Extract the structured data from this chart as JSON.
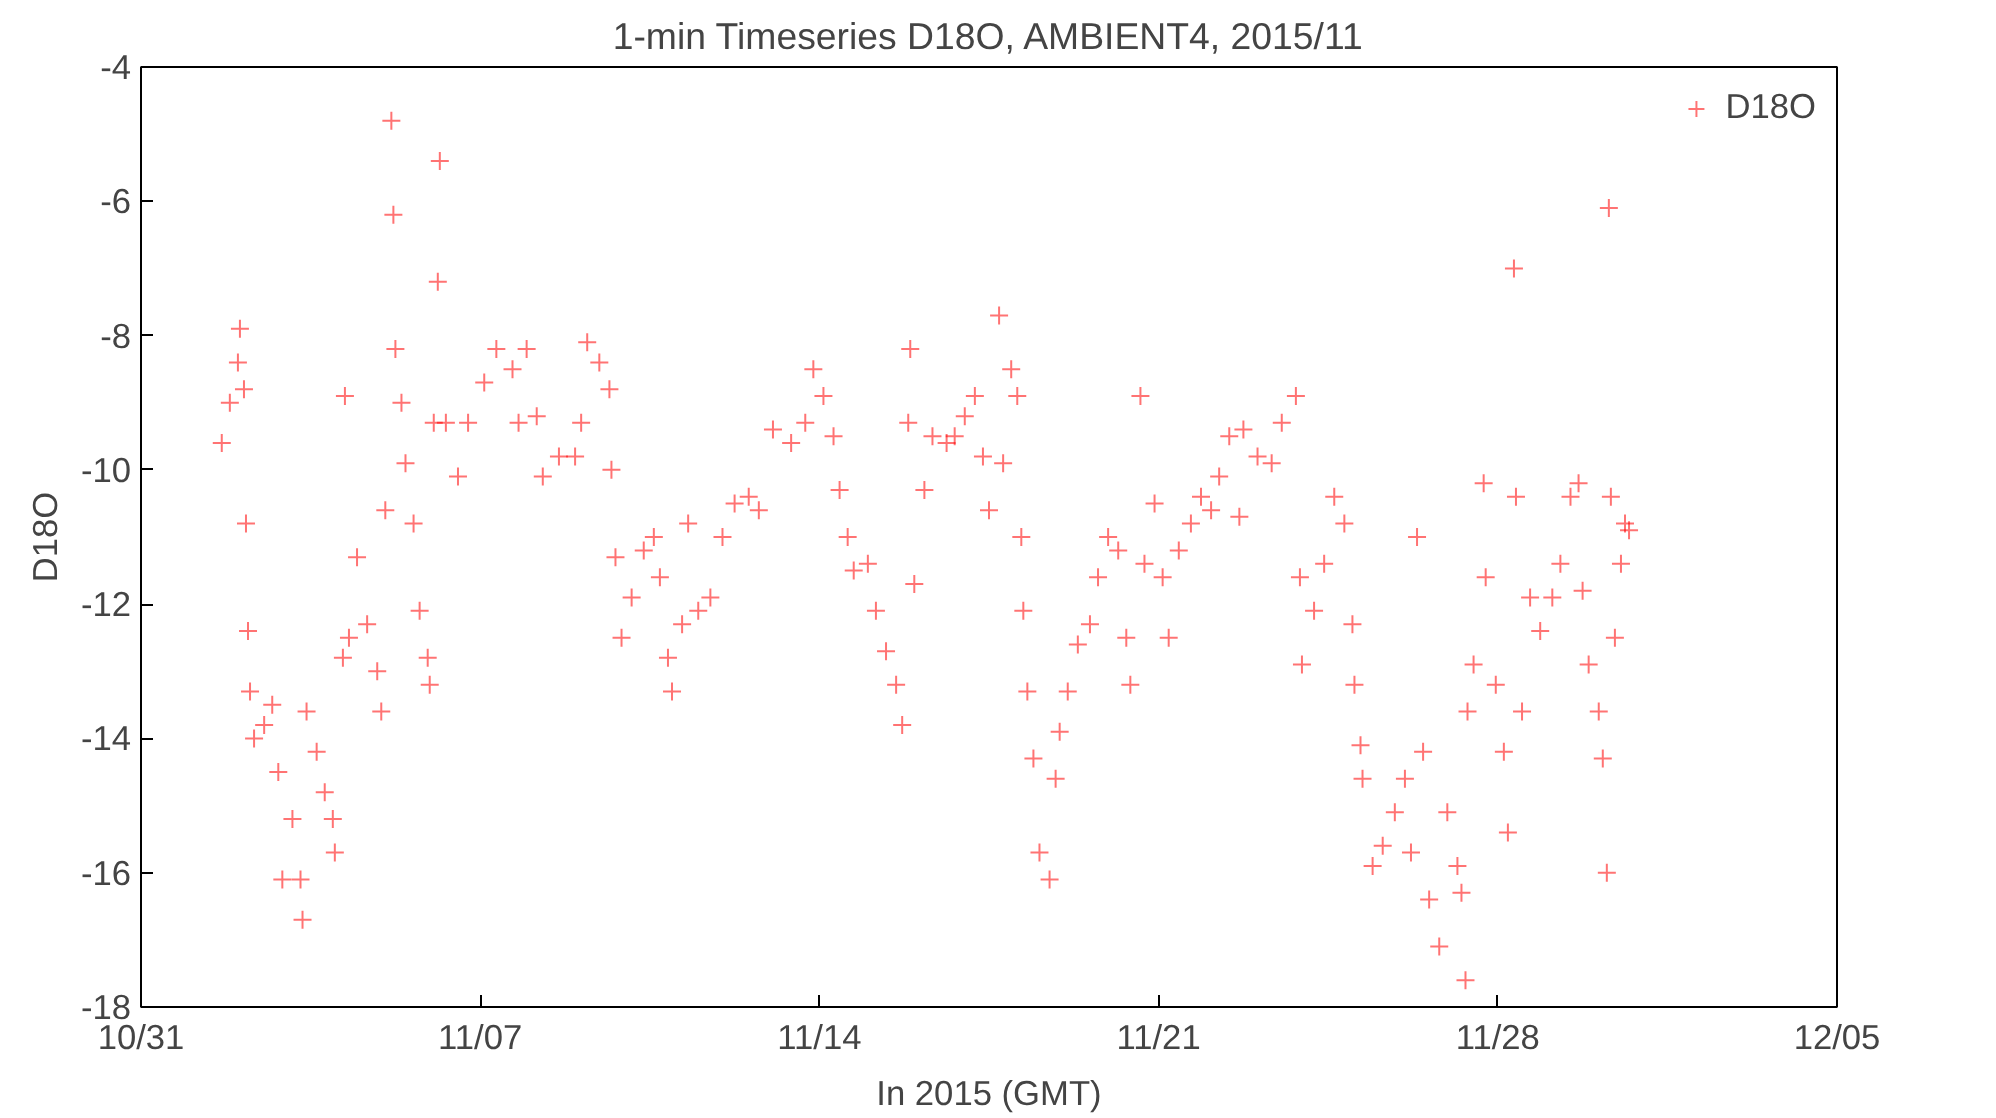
{
  "chart_data": {
    "type": "scatter",
    "title": "1-min Timeseries D18O, AMBIENT4, 2015/11",
    "xlabel": "In 2015 (GMT)",
    "ylabel": "D18O",
    "xlim": [
      "2015-10-31",
      "2015-12-05"
    ],
    "xticks": [
      {
        "value": "2015-10-31",
        "label": "10/31"
      },
      {
        "value": "2015-11-07",
        "label": "11/07"
      },
      {
        "value": "2015-11-14",
        "label": "11/14"
      },
      {
        "value": "2015-11-21",
        "label": "11/21"
      },
      {
        "value": "2015-11-28",
        "label": "11/28"
      },
      {
        "value": "2015-12-05",
        "label": "12/05"
      }
    ],
    "ylim": [
      -18,
      -4
    ],
    "yticks": [
      -18,
      -16,
      -14,
      -12,
      -10,
      -8,
      -6,
      -4
    ],
    "grid": false,
    "legend": "top right",
    "marker": "cross",
    "series": [
      {
        "name": "D18O",
        "color": "#ff0000",
        "x": [
          "2015-11-01T16:00",
          "2015-11-01T20:00",
          "2015-11-02T00:00",
          "2015-11-02T01:00",
          "2015-11-02T03:00",
          "2015-11-02T04:00",
          "2015-11-02T05:00",
          "2015-11-02T06:00",
          "2015-11-02T08:00",
          "2015-11-02T13:00",
          "2015-11-02T17:00",
          "2015-11-02T20:00",
          "2015-11-02T22:00",
          "2015-11-03T03:00",
          "2015-11-03T07:00",
          "2015-11-03T08:00",
          "2015-11-03T10:00",
          "2015-11-03T15:00",
          "2015-11-03T19:00",
          "2015-11-03T23:00",
          "2015-11-04T00:00",
          "2015-11-04T04:00",
          "2015-11-04T05:00",
          "2015-11-04T07:00",
          "2015-11-04T11:00",
          "2015-11-04T16:00",
          "2015-11-04T21:00",
          "2015-11-04T23:00",
          "2015-11-05T01:00",
          "2015-11-05T04:00",
          "2015-11-05T05:00",
          "2015-11-05T06:00",
          "2015-11-05T09:00",
          "2015-11-05T11:00",
          "2015-11-05T15:00",
          "2015-11-05T18:00",
          "2015-11-05T22:00",
          "2015-11-05T23:00",
          "2015-11-06T01:00",
          "2015-11-06T03:00",
          "2015-11-06T04:00",
          "2015-11-06T07:00",
          "2015-11-06T13:00",
          "2015-11-06T18:00",
          "2015-11-07T02:00",
          "2015-11-07T08:00",
          "2015-11-07T16:00",
          "2015-11-07T19:00",
          "2015-11-07T23:00",
          "2015-11-08T04:00",
          "2015-11-08T07:00",
          "2015-11-08T15:00",
          "2015-11-08T23:00",
          "2015-11-09T02:00",
          "2015-11-09T05:00",
          "2015-11-09T11:00",
          "2015-11-09T16:00",
          "2015-11-09T17:00",
          "2015-11-09T19:00",
          "2015-11-09T22:00",
          "2015-11-10T03:00",
          "2015-11-10T09:00",
          "2015-11-10T14:00",
          "2015-11-10T17:00",
          "2015-11-10T21:00",
          "2015-11-10T23:00",
          "2015-11-11T04:00",
          "2015-11-11T07:00",
          "2015-11-11T12:00",
          "2015-11-11T18:00",
          "2015-11-12T00:00",
          "2015-11-12T06:00",
          "2015-11-12T13:00",
          "2015-11-12T18:00",
          "2015-11-13T01:00",
          "2015-11-13T10:00",
          "2015-11-13T17:00",
          "2015-11-13T21:00",
          "2015-11-14T02:00",
          "2015-11-14T07:00",
          "2015-11-14T10:00",
          "2015-11-14T14:00",
          "2015-11-14T17:00",
          "2015-11-15T00:00",
          "2015-11-15T04:00",
          "2015-11-15T09:00",
          "2015-11-15T14:00",
          "2015-11-15T17:00",
          "2015-11-15T20:00",
          "2015-11-15T21:00",
          "2015-11-15T23:00",
          "2015-11-16T04:00",
          "2015-11-16T08:00",
          "2015-11-16T15:00",
          "2015-11-16T19:00",
          "2015-11-17T00:00",
          "2015-11-17T05:00",
          "2015-11-17T09:00",
          "2015-11-17T12:00",
          "2015-11-17T17:00",
          "2015-11-17T19:00",
          "2015-11-17T23:00",
          "2015-11-18T02:00",
          "2015-11-18T04:00",
          "2015-11-18T05:00",
          "2015-11-18T07:00",
          "2015-11-18T10:00",
          "2015-11-18T13:00",
          "2015-11-18T18:00",
          "2015-11-18T21:00",
          "2015-11-18T23:00",
          "2015-11-19T03:00",
          "2015-11-19T08:00",
          "2015-11-19T14:00",
          "2015-11-19T18:00",
          "2015-11-19T23:00",
          "2015-11-20T04:00",
          "2015-11-20T08:00",
          "2015-11-20T10:00",
          "2015-11-20T15:00",
          "2015-11-20T17:00",
          "2015-11-20T22:00",
          "2015-11-21T02:00",
          "2015-11-21T05:00",
          "2015-11-21T10:00",
          "2015-11-21T16:00",
          "2015-11-21T21:00",
          "2015-11-22T02:00",
          "2015-11-22T06:00",
          "2015-11-22T11:00",
          "2015-11-22T16:00",
          "2015-11-22T18:00",
          "2015-11-23T01:00",
          "2015-11-23T08:00",
          "2015-11-23T13:00",
          "2015-11-23T20:00",
          "2015-11-23T22:00",
          "2015-11-23T23:00",
          "2015-11-24T05:00",
          "2015-11-24T10:00",
          "2015-11-24T15:00",
          "2015-11-24T20:00",
          "2015-11-25T00:00",
          "2015-11-25T01:00",
          "2015-11-25T04:00",
          "2015-11-25T05:00",
          "2015-11-25T10:00",
          "2015-11-25T15:00",
          "2015-11-25T21:00",
          "2015-11-26T02:00",
          "2015-11-26T05:00",
          "2015-11-26T08:00",
          "2015-11-26T11:00",
          "2015-11-26T14:00",
          "2015-11-26T19:00",
          "2015-11-26T23:00",
          "2015-11-27T04:00",
          "2015-11-27T06:00",
          "2015-11-27T08:00",
          "2015-11-27T09:00",
          "2015-11-27T12:00",
          "2015-11-27T17:00",
          "2015-11-27T18:00",
          "2015-11-27T23:00",
          "2015-11-28T03:00",
          "2015-11-28T05:00",
          "2015-11-28T08:00",
          "2015-11-28T09:00",
          "2015-11-28T12:00",
          "2015-11-28T16:00",
          "2015-11-28T21:00",
          "2015-11-29T03:00",
          "2015-11-29T07:00",
          "2015-11-29T12:00",
          "2015-11-29T16:00",
          "2015-11-29T18:00",
          "2015-11-29T21:00",
          "2015-11-30T02:00",
          "2015-11-30T04:00",
          "2015-11-30T06:00",
          "2015-11-30T07:00",
          "2015-11-30T08:00",
          "2015-11-30T10:00",
          "2015-11-30T13:00",
          "2015-11-30T15:00",
          "2015-11-30T17:00"
        ],
        "values": [
          -9.6,
          -9.0,
          -8.4,
          -7.9,
          -8.8,
          -10.8,
          -12.4,
          -13.3,
          -14.0,
          -13.8,
          -13.5,
          -14.5,
          -16.1,
          -15.2,
          -16.1,
          -16.7,
          -13.6,
          -14.2,
          -14.8,
          -15.2,
          -15.7,
          -12.8,
          -8.9,
          -12.5,
          -11.3,
          -12.3,
          -13.0,
          -13.6,
          -10.6,
          -4.8,
          -6.2,
          -8.2,
          -9.0,
          -9.9,
          -10.8,
          -12.1,
          -12.8,
          -13.2,
          -9.3,
          -7.2,
          -5.4,
          -9.3,
          -10.1,
          -9.3,
          -8.7,
          -8.2,
          -8.5,
          -9.3,
          -8.2,
          -9.2,
          -10.1,
          -9.8,
          -9.8,
          -9.3,
          -8.1,
          -8.4,
          -8.8,
          -10.0,
          -11.3,
          -12.5,
          -11.9,
          -11.2,
          -11.0,
          -11.6,
          -12.8,
          -13.3,
          -12.3,
          -10.8,
          -12.1,
          -11.9,
          -11.0,
          -10.5,
          -10.4,
          -10.6,
          -9.4,
          -9.6,
          -9.3,
          -8.5,
          -8.9,
          -9.5,
          -10.3,
          -11.0,
          -11.5,
          -11.4,
          -12.1,
          -12.7,
          -13.2,
          -13.8,
          -9.3,
          -8.2,
          -11.7,
          -10.3,
          -9.5,
          -9.6,
          -9.5,
          -9.2,
          -8.9,
          -9.8,
          -10.6,
          -7.7,
          -9.9,
          -8.5,
          -8.9,
          -11.0,
          -12.1,
          -13.3,
          -14.3,
          -15.7,
          -16.1,
          -14.6,
          -13.9,
          -13.3,
          -12.6,
          -12.3,
          -11.6,
          -11.0,
          -11.2,
          -12.5,
          -13.2,
          -8.9,
          -11.4,
          -10.5,
          -11.6,
          -12.5,
          -11.2,
          -10.8,
          -10.4,
          -10.6,
          -10.1,
          -9.5,
          -10.7,
          -9.4,
          -9.8,
          -9.9,
          -9.3,
          -8.9,
          -11.6,
          -12.9,
          -12.1,
          -11.4,
          -10.4,
          -10.8,
          -12.3,
          -13.2,
          -14.1,
          -14.6,
          -15.9,
          -15.6,
          -15.1,
          -14.6,
          -15.7,
          -11.0,
          -14.2,
          -16.4,
          -17.1,
          -15.1,
          -15.9,
          -16.3,
          -17.6,
          -13.6,
          -12.9,
          -10.2,
          -11.6,
          -13.2,
          -14.2,
          -15.4,
          -7.0,
          -10.4,
          -13.6,
          -11.9,
          -12.4,
          -11.9,
          -11.4,
          -10.4,
          -10.2,
          -11.8,
          -12.9,
          -13.6,
          -14.3,
          -16.0,
          -6.1,
          -10.4,
          -12.5,
          -11.4,
          -10.8,
          -10.9
        ]
      }
    ]
  }
}
